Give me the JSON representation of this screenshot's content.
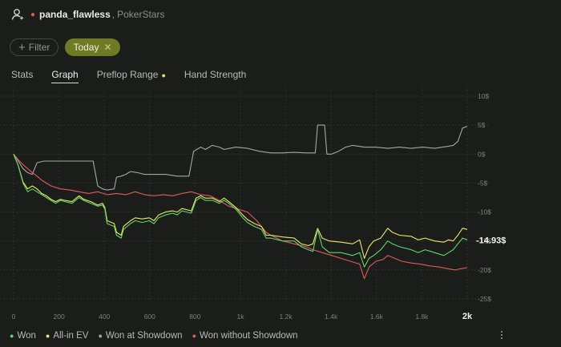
{
  "header": {
    "player_name": "panda_flawless",
    "separator": ",",
    "site": "PokerStars"
  },
  "filters": {
    "filter_label": "Filter",
    "today_label": "Today"
  },
  "tabs": [
    {
      "label": "Stats",
      "active": false
    },
    {
      "label": "Graph",
      "active": true
    },
    {
      "label": "Preflop Range",
      "active": false,
      "dot": true
    },
    {
      "label": "Hand Strength",
      "active": false
    }
  ],
  "legend": [
    {
      "label": "Won",
      "color": "#61d66a"
    },
    {
      "label": "All-in EV",
      "color": "#ecea63"
    },
    {
      "label": "Won at Showdown",
      "color": "#a4a8a4"
    },
    {
      "label": "Won without Showdown",
      "color": "#e25a5a"
    }
  ],
  "chart_data": {
    "type": "line",
    "x_ticks": [
      "0",
      "200",
      "400",
      "600",
      "800",
      "1k",
      "1.2k",
      "1.4k",
      "1.6k",
      "1.8k",
      "2k"
    ],
    "y_ticks": [
      "10$",
      "5$",
      "0$",
      "-5$",
      "-10$",
      "-15$",
      "-20$",
      "-25$"
    ],
    "xlim": [
      0,
      1940
    ],
    "ylim": [
      -25,
      10
    ],
    "grid": true,
    "current_value_label": "-14.93$",
    "legend_position": "bottom",
    "series": [
      {
        "name": "Won",
        "color": "#61d66a",
        "points": [
          [
            0,
            0
          ],
          [
            20,
            -2
          ],
          [
            40,
            -5
          ],
          [
            60,
            -6.5
          ],
          [
            80,
            -6
          ],
          [
            100,
            -6.5
          ],
          [
            120,
            -7
          ],
          [
            140,
            -7.5
          ],
          [
            160,
            -8
          ],
          [
            180,
            -8.5
          ],
          [
            200,
            -8
          ],
          [
            220,
            -8.2
          ],
          [
            250,
            -8.5
          ],
          [
            280,
            -7.5
          ],
          [
            300,
            -8
          ],
          [
            330,
            -8.5
          ],
          [
            360,
            -9
          ],
          [
            380,
            -8.8
          ],
          [
            390,
            -9.5
          ],
          [
            400,
            -12
          ],
          [
            430,
            -12.5
          ],
          [
            440,
            -14
          ],
          [
            460,
            -14.5
          ],
          [
            470,
            -13
          ],
          [
            500,
            -12
          ],
          [
            520,
            -11.5
          ],
          [
            550,
            -11.8
          ],
          [
            580,
            -11.5
          ],
          [
            600,
            -12
          ],
          [
            620,
            -11
          ],
          [
            650,
            -10.5
          ],
          [
            680,
            -10.2
          ],
          [
            700,
            -10.5
          ],
          [
            720,
            -9.8
          ],
          [
            760,
            -10.2
          ],
          [
            780,
            -8
          ],
          [
            800,
            -7.5
          ],
          [
            820,
            -8
          ],
          [
            850,
            -8
          ],
          [
            880,
            -8.5
          ],
          [
            900,
            -8
          ],
          [
            920,
            -8.5
          ],
          [
            950,
            -9.5
          ],
          [
            980,
            -11
          ],
          [
            1000,
            -11.8
          ],
          [
            1030,
            -12.5
          ],
          [
            1060,
            -13
          ],
          [
            1080,
            -14.5
          ],
          [
            1100,
            -14.5
          ],
          [
            1150,
            -15
          ],
          [
            1200,
            -15
          ],
          [
            1230,
            -16
          ],
          [
            1260,
            -16.5
          ],
          [
            1280,
            -16.8
          ],
          [
            1300,
            -13
          ],
          [
            1320,
            -16
          ],
          [
            1350,
            -17
          ],
          [
            1400,
            -17
          ],
          [
            1450,
            -17.5
          ],
          [
            1480,
            -17
          ],
          [
            1500,
            -19.5
          ],
          [
            1520,
            -18
          ],
          [
            1540,
            -17.5
          ],
          [
            1570,
            -16.5
          ],
          [
            1600,
            -15
          ],
          [
            1620,
            -15.5
          ],
          [
            1650,
            -16
          ],
          [
            1700,
            -16.5
          ],
          [
            1730,
            -17
          ],
          [
            1760,
            -16.5
          ],
          [
            1800,
            -17
          ],
          [
            1840,
            -17.5
          ],
          [
            1860,
            -17
          ],
          [
            1880,
            -16.5
          ],
          [
            1900,
            -15.5
          ],
          [
            1920,
            -14.5
          ],
          [
            1940,
            -14.8
          ]
        ]
      },
      {
        "name": "All-in EV",
        "color": "#ecea63",
        "points": [
          [
            0,
            0
          ],
          [
            20,
            -2
          ],
          [
            40,
            -4.8
          ],
          [
            60,
            -6
          ],
          [
            80,
            -5.5
          ],
          [
            100,
            -6
          ],
          [
            120,
            -6.8
          ],
          [
            140,
            -7.2
          ],
          [
            160,
            -7.8
          ],
          [
            180,
            -8.2
          ],
          [
            200,
            -7.8
          ],
          [
            220,
            -8
          ],
          [
            250,
            -8.2
          ],
          [
            280,
            -7.2
          ],
          [
            300,
            -7.8
          ],
          [
            330,
            -8.2
          ],
          [
            360,
            -8.8
          ],
          [
            380,
            -8.5
          ],
          [
            390,
            -9.2
          ],
          [
            400,
            -11.5
          ],
          [
            430,
            -12
          ],
          [
            440,
            -13.5
          ],
          [
            460,
            -14
          ],
          [
            470,
            -12.5
          ],
          [
            500,
            -11.5
          ],
          [
            520,
            -11
          ],
          [
            550,
            -11.2
          ],
          [
            580,
            -11
          ],
          [
            600,
            -11.5
          ],
          [
            620,
            -10.5
          ],
          [
            650,
            -10
          ],
          [
            680,
            -9.8
          ],
          [
            700,
            -10
          ],
          [
            720,
            -9.4
          ],
          [
            760,
            -9.8
          ],
          [
            780,
            -7.6
          ],
          [
            800,
            -7.2
          ],
          [
            820,
            -7.6
          ],
          [
            850,
            -7.6
          ],
          [
            880,
            -8.2
          ],
          [
            900,
            -7.6
          ],
          [
            920,
            -8.2
          ],
          [
            950,
            -9.2
          ],
          [
            980,
            -10.5
          ],
          [
            1000,
            -11.3
          ],
          [
            1030,
            -12
          ],
          [
            1060,
            -12.5
          ],
          [
            1080,
            -14
          ],
          [
            1100,
            -14
          ],
          [
            1150,
            -14.3
          ],
          [
            1200,
            -14.5
          ],
          [
            1230,
            -15.5
          ],
          [
            1260,
            -15.8
          ],
          [
            1280,
            -15.5
          ],
          [
            1300,
            -12.8
          ],
          [
            1320,
            -14.5
          ],
          [
            1350,
            -15
          ],
          [
            1400,
            -15.2
          ],
          [
            1450,
            -15.5
          ],
          [
            1480,
            -14.8
          ],
          [
            1500,
            -18
          ],
          [
            1520,
            -16
          ],
          [
            1540,
            -15
          ],
          [
            1570,
            -14.5
          ],
          [
            1600,
            -12.8
          ],
          [
            1620,
            -13.5
          ],
          [
            1650,
            -14
          ],
          [
            1700,
            -14.2
          ],
          [
            1730,
            -14.8
          ],
          [
            1760,
            -14.5
          ],
          [
            1800,
            -15
          ],
          [
            1840,
            -15.2
          ],
          [
            1860,
            -14.8
          ],
          [
            1880,
            -15
          ],
          [
            1900,
            -14
          ],
          [
            1920,
            -12.8
          ],
          [
            1940,
            -13
          ]
        ]
      },
      {
        "name": "Won at Showdown",
        "color": "#a4a8a4",
        "points": [
          [
            0,
            0
          ],
          [
            20,
            -1.2
          ],
          [
            40,
            -2.5
          ],
          [
            60,
            -3.2
          ],
          [
            80,
            -3.5
          ],
          [
            100,
            -1.5
          ],
          [
            130,
            -1.2
          ],
          [
            160,
            -1.2
          ],
          [
            200,
            -1.2
          ],
          [
            250,
            -1.2
          ],
          [
            300,
            -1.2
          ],
          [
            340,
            -1.2
          ],
          [
            360,
            -5.5
          ],
          [
            380,
            -6
          ],
          [
            400,
            -6.2
          ],
          [
            430,
            -6
          ],
          [
            440,
            -4
          ],
          [
            460,
            -3.8
          ],
          [
            480,
            -3.5
          ],
          [
            500,
            -3
          ],
          [
            530,
            -3.2
          ],
          [
            560,
            -3.5
          ],
          [
            600,
            -3.5
          ],
          [
            650,
            -3.5
          ],
          [
            700,
            -3.8
          ],
          [
            750,
            -3.8
          ],
          [
            770,
            0.5
          ],
          [
            800,
            1.2
          ],
          [
            820,
            0.8
          ],
          [
            850,
            1.5
          ],
          [
            880,
            1.2
          ],
          [
            900,
            0.8
          ],
          [
            950,
            1.2
          ],
          [
            1000,
            1.0
          ],
          [
            1050,
            0.5
          ],
          [
            1100,
            0.2
          ],
          [
            1150,
            0.2
          ],
          [
            1200,
            0.3
          ],
          [
            1250,
            0.2
          ],
          [
            1290,
            0.2
          ],
          [
            1300,
            5
          ],
          [
            1330,
            5
          ],
          [
            1340,
            0
          ],
          [
            1360,
            0
          ],
          [
            1390,
            0.5
          ],
          [
            1420,
            1.2
          ],
          [
            1450,
            1.5
          ],
          [
            1500,
            1.2
          ],
          [
            1550,
            1.2
          ],
          [
            1600,
            1
          ],
          [
            1650,
            1.2
          ],
          [
            1700,
            1
          ],
          [
            1750,
            1.2
          ],
          [
            1800,
            1
          ],
          [
            1850,
            1.3
          ],
          [
            1880,
            1.5
          ],
          [
            1900,
            2.2
          ],
          [
            1920,
            4.5
          ],
          [
            1940,
            4.8
          ]
        ]
      },
      {
        "name": "Won without Showdown",
        "color": "#e25a5a",
        "points": [
          [
            0,
            0
          ],
          [
            20,
            -1
          ],
          [
            40,
            -1.8
          ],
          [
            60,
            -2.5
          ],
          [
            80,
            -3.2
          ],
          [
            100,
            -3.8
          ],
          [
            120,
            -4.5
          ],
          [
            140,
            -5
          ],
          [
            160,
            -5.5
          ],
          [
            200,
            -6
          ],
          [
            240,
            -6.2
          ],
          [
            280,
            -6.5
          ],
          [
            320,
            -6.8
          ],
          [
            360,
            -6.5
          ],
          [
            400,
            -7
          ],
          [
            440,
            -6.8
          ],
          [
            480,
            -7
          ],
          [
            520,
            -6.5
          ],
          [
            560,
            -7
          ],
          [
            600,
            -7.2
          ],
          [
            640,
            -7
          ],
          [
            680,
            -7.2
          ],
          [
            720,
            -6.8
          ],
          [
            760,
            -6.5
          ],
          [
            800,
            -7
          ],
          [
            840,
            -7.2
          ],
          [
            880,
            -8
          ],
          [
            920,
            -9
          ],
          [
            960,
            -9.5
          ],
          [
            1000,
            -10
          ],
          [
            1040,
            -11.5
          ],
          [
            1080,
            -13.5
          ],
          [
            1100,
            -14
          ],
          [
            1150,
            -15
          ],
          [
            1200,
            -15.5
          ],
          [
            1250,
            -16
          ],
          [
            1280,
            -16.5
          ],
          [
            1320,
            -17
          ],
          [
            1360,
            -17.5
          ],
          [
            1400,
            -18
          ],
          [
            1440,
            -18.5
          ],
          [
            1480,
            -19
          ],
          [
            1500,
            -21.5
          ],
          [
            1520,
            -19.5
          ],
          [
            1550,
            -18.5
          ],
          [
            1580,
            -18.2
          ],
          [
            1600,
            -17.5
          ],
          [
            1630,
            -18
          ],
          [
            1660,
            -18.5
          ],
          [
            1700,
            -18.8
          ],
          [
            1740,
            -19
          ],
          [
            1780,
            -19.3
          ],
          [
            1820,
            -19.5
          ],
          [
            1860,
            -19.8
          ],
          [
            1890,
            -20
          ],
          [
            1910,
            -19.8
          ],
          [
            1940,
            -19.6
          ]
        ]
      }
    ]
  }
}
